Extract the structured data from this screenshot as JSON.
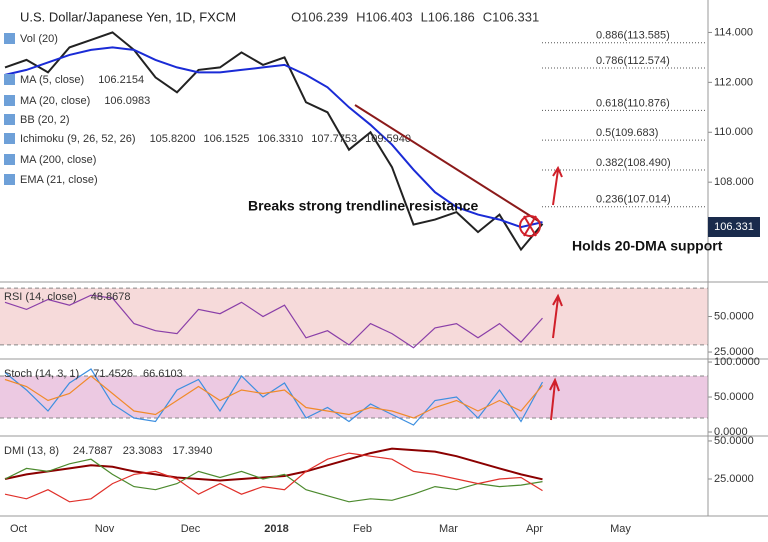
{
  "chart_data": [
    {
      "type": "line",
      "title": "U.S. Dollar/Japanese Yen, 1D, FXCM",
      "ohlc": [
        "O106.239",
        "H106.403",
        "L106.186",
        "C106.331"
      ],
      "categories": [
        null,
        "Oct",
        null,
        null,
        null,
        "Nov",
        null,
        null,
        null,
        "Dec",
        null,
        null,
        null,
        "2018",
        null,
        null,
        null,
        "Feb",
        null,
        null,
        null,
        "Mar",
        null,
        null,
        null,
        "Apr",
        null,
        null,
        null,
        "May",
        null,
        null,
        null
      ],
      "series": [
        {
          "color": "#222222",
          "values": [
            112.6,
            112.9,
            112.4,
            113.4,
            113.7,
            114.0,
            113.3,
            112.2,
            111.6,
            112.5,
            112.6,
            113.2,
            112.7,
            113.0,
            111.2,
            110.8,
            109.3,
            110.0,
            108.6,
            106.3,
            106.5,
            106.8,
            106.0,
            106.7,
            105.3,
            106.331,
            null,
            null,
            null,
            null,
            null,
            null,
            null
          ]
        },
        {
          "color": "#1a2bd6",
          "values": [
            112.3,
            112.5,
            112.8,
            113.1,
            113.3,
            113.4,
            113.3,
            112.9,
            112.6,
            112.4,
            112.4,
            112.5,
            112.6,
            112.7,
            112.3,
            111.8,
            111.0,
            110.3,
            109.5,
            108.5,
            107.6,
            107.0,
            106.7,
            106.5,
            106.2,
            106.4,
            null,
            null,
            null,
            null,
            null,
            null,
            null
          ]
        }
      ],
      "ylim": [
        104,
        115.3
      ],
      "yticks": [
        {
          "value": 108,
          "label": "108.000"
        },
        {
          "value": 110,
          "label": "110.000"
        },
        {
          "value": 112,
          "label": "112.000"
        },
        {
          "value": 114,
          "label": "114.000"
        }
      ],
      "price_label": "106.331",
      "fib_levels": [
        {
          "label": "0.886(113.585)",
          "value": 113.585
        },
        {
          "label": "0.786(112.574)",
          "value": 112.574
        },
        {
          "label": "0.618(110.876)",
          "value": 110.876
        },
        {
          "label": "0.5(109.683)",
          "value": 109.683
        },
        {
          "label": "0.382(108.490)",
          "value": 108.49
        },
        {
          "label": "0.236(107.014)",
          "value": 107.014
        }
      ],
      "studies": [
        {
          "name": "Vol (20)",
          "readout": []
        },
        {
          "name": "MA (5, close)",
          "readout": [
            "106.2154"
          ]
        },
        {
          "name": "MA (20, close)",
          "readout": [
            "106.0983"
          ]
        },
        {
          "name": "BB (20, 2)",
          "readout": []
        },
        {
          "name": "Ichimoku (9, 26, 52, 26)",
          "readout": [
            "105.8200",
            "106.1525",
            "106.3310",
            "107.7753",
            "109.5940"
          ]
        },
        {
          "name": "MA (200, close)",
          "readout": []
        },
        {
          "name": "EMA (21, close)",
          "readout": []
        }
      ],
      "annotations": [
        "Breaks strong trendline resistance",
        "Holds 20-DMA support"
      ]
    },
    {
      "type": "line",
      "title": "RSI (14, close)",
      "readout": [
        "48.8678"
      ],
      "series": [
        {
          "color": "#8a3fa8",
          "values": [
            60,
            55,
            62,
            58,
            65,
            63,
            45,
            40,
            38,
            55,
            52,
            60,
            50,
            58,
            35,
            40,
            30,
            45,
            38,
            28,
            42,
            45,
            35,
            45,
            32,
            48.8678,
            null,
            null,
            null,
            null,
            null,
            null,
            null
          ]
        }
      ],
      "bands": [
        30,
        70
      ],
      "band_color": "#f6dada",
      "ylim": [
        20.8,
        73.6
      ],
      "yticks": [
        {
          "value": 25,
          "label": "25.0000"
        },
        {
          "value": 50,
          "label": "50.0000"
        }
      ]
    },
    {
      "type": "line",
      "title": "Stoch (14, 3, 1)",
      "readout": [
        "71.4526",
        "66.6103"
      ],
      "series": [
        {
          "color": "#3d8fe0",
          "values": [
            85,
            60,
            30,
            70,
            90,
            40,
            20,
            15,
            60,
            75,
            30,
            80,
            50,
            70,
            20,
            35,
            15,
            40,
            25,
            10,
            45,
            50,
            20,
            60,
            15,
            71.4526,
            null,
            null,
            null,
            null,
            null,
            null,
            null
          ]
        },
        {
          "color": "#f08a2a",
          "values": [
            75,
            65,
            45,
            55,
            80,
            55,
            30,
            25,
            45,
            65,
            45,
            60,
            55,
            60,
            35,
            30,
            25,
            35,
            30,
            20,
            35,
            45,
            30,
            45,
            30,
            66.6103,
            null,
            null,
            null,
            null,
            null,
            null,
            null
          ]
        }
      ],
      "bands": [
        20,
        80
      ],
      "band_color": "#ecc9e2",
      "ylim": [
        -5.7,
        102.9
      ],
      "yticks": [
        {
          "value": 0,
          "label": "0.0000"
        },
        {
          "value": 50,
          "label": "50.0000"
        },
        {
          "value": 100,
          "label": "100.0000"
        }
      ]
    },
    {
      "type": "line",
      "title": "DMI (13, 8)",
      "readout": [
        "24.7887",
        "23.3083",
        "17.3940"
      ],
      "series": [
        {
          "color": "#8b0000",
          "values": [
            25,
            28,
            30,
            32,
            34,
            33,
            30,
            28,
            26,
            25,
            24,
            25,
            26,
            27,
            30,
            34,
            38,
            42,
            45,
            44,
            43,
            40,
            36,
            32,
            28,
            24.7887,
            null,
            null,
            null,
            null,
            null,
            null,
            null
          ]
        },
        {
          "color": "#4c8a2e",
          "values": [
            25,
            32,
            30,
            35,
            38,
            28,
            20,
            18,
            22,
            30,
            26,
            30,
            25,
            28,
            18,
            14,
            10,
            12,
            11,
            15,
            20,
            18,
            22,
            20,
            21,
            23.3083,
            null,
            null,
            null,
            null,
            null,
            null,
            null
          ]
        },
        {
          "color": "#e0302a",
          "values": [
            15,
            12,
            18,
            10,
            12,
            22,
            28,
            30,
            25,
            15,
            22,
            15,
            20,
            18,
            30,
            38,
            42,
            40,
            38,
            30,
            28,
            25,
            22,
            25,
            26,
            17.394,
            null,
            null,
            null,
            null,
            null,
            null,
            null
          ]
        }
      ],
      "ylim": [
        0.7,
        52.6
      ],
      "yticks": [
        {
          "value": 25,
          "label": "25.0000"
        },
        {
          "value": 50,
          "label": "50.0000"
        }
      ]
    }
  ]
}
